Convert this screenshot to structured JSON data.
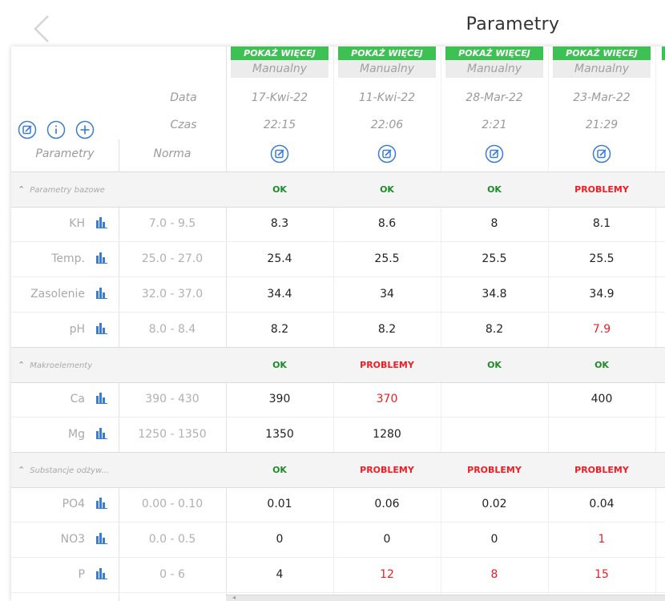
{
  "header": {
    "title": "Parametry",
    "back_icon": "chevron-left-icon"
  },
  "left_header": {
    "icons": [
      "edit-icon",
      "info-icon",
      "add-icon"
    ],
    "date_label": "Data",
    "time_label": "Czas",
    "param_label": "Parametry",
    "norm_label": "Norma"
  },
  "columns": [
    {
      "show_more": "POKAŻ WIĘCEJ",
      "source": "Manualny",
      "date": "17-Kwi-22",
      "time": "22:15"
    },
    {
      "show_more": "POKAŻ WIĘCEJ",
      "source": "Manualny",
      "date": "11-Kwi-22",
      "time": "22:06"
    },
    {
      "show_more": "POKAŻ WIĘCEJ",
      "source": "Manualny",
      "date": "28-Mar-22",
      "time": "2:21"
    },
    {
      "show_more": "POKAŻ WIĘCEJ",
      "source": "Manualny",
      "date": "23-Mar-22",
      "time": "21:29"
    }
  ],
  "sections": [
    {
      "label": "Parametry bazowe",
      "statuses": [
        {
          "text": "OK",
          "type": "ok"
        },
        {
          "text": "OK",
          "type": "ok"
        },
        {
          "text": "OK",
          "type": "ok"
        },
        {
          "text": "PROBLEMY",
          "type": "problem"
        }
      ],
      "rows": [
        {
          "name": "KH",
          "norm": "7.0 - 9.5",
          "values": [
            {
              "v": "8.3",
              "red": false
            },
            {
              "v": "8.6",
              "red": false
            },
            {
              "v": "8",
              "red": false
            },
            {
              "v": "8.1",
              "red": false
            }
          ]
        },
        {
          "name": "Temp.",
          "norm": "25.0 - 27.0",
          "values": [
            {
              "v": "25.4",
              "red": false
            },
            {
              "v": "25.5",
              "red": false
            },
            {
              "v": "25.5",
              "red": false
            },
            {
              "v": "25.5",
              "red": false
            }
          ]
        },
        {
          "name": "Zasolenie",
          "norm": "32.0 - 37.0",
          "values": [
            {
              "v": "34.4",
              "red": false
            },
            {
              "v": "34",
              "red": false
            },
            {
              "v": "34.8",
              "red": false
            },
            {
              "v": "34.9",
              "red": false
            }
          ]
        },
        {
          "name": "pH",
          "norm": "8.0 - 8.4",
          "values": [
            {
              "v": "8.2",
              "red": false
            },
            {
              "v": "8.2",
              "red": false
            },
            {
              "v": "8.2",
              "red": false
            },
            {
              "v": "7.9",
              "red": true
            }
          ]
        }
      ]
    },
    {
      "label": "Makroelementy",
      "statuses": [
        {
          "text": "OK",
          "type": "ok"
        },
        {
          "text": "PROBLEMY",
          "type": "problem"
        },
        {
          "text": "OK",
          "type": "ok"
        },
        {
          "text": "OK",
          "type": "ok"
        }
      ],
      "rows": [
        {
          "name": "Ca",
          "norm": "390 - 430",
          "values": [
            {
              "v": "390",
              "red": false
            },
            {
              "v": "370",
              "red": true
            },
            {
              "v": "",
              "red": false
            },
            {
              "v": "400",
              "red": false
            }
          ]
        },
        {
          "name": "Mg",
          "norm": "1250 - 1350",
          "values": [
            {
              "v": "1350",
              "red": false
            },
            {
              "v": "1280",
              "red": false
            },
            {
              "v": "",
              "red": false
            },
            {
              "v": "",
              "red": false
            }
          ]
        }
      ]
    },
    {
      "label": "Substancje odżyw...",
      "statuses": [
        {
          "text": "OK",
          "type": "ok"
        },
        {
          "text": "PROBLEMY",
          "type": "problem"
        },
        {
          "text": "PROBLEMY",
          "type": "problem"
        },
        {
          "text": "PROBLEMY",
          "type": "problem"
        }
      ],
      "rows": [
        {
          "name": "PO4",
          "norm": "0.00 - 0.10",
          "values": [
            {
              "v": "0.01",
              "red": false
            },
            {
              "v": "0.06",
              "red": false
            },
            {
              "v": "0.02",
              "red": false
            },
            {
              "v": "0.04",
              "red": false
            }
          ]
        },
        {
          "name": "NO3",
          "norm": "0.0 - 0.5",
          "values": [
            {
              "v": "0",
              "red": false
            },
            {
              "v": "0",
              "red": false
            },
            {
              "v": "0",
              "red": false
            },
            {
              "v": "1",
              "red": true
            }
          ]
        },
        {
          "name": "P",
          "norm": "0 - 6",
          "values": [
            {
              "v": "4",
              "red": false
            },
            {
              "v": "12",
              "red": true
            },
            {
              "v": "8",
              "red": true
            },
            {
              "v": "15",
              "red": true
            }
          ]
        }
      ]
    }
  ],
  "colors": {
    "accent_green": "#3dc153",
    "ok": "#1e8c2a",
    "problem": "#ee1c24",
    "icon_blue": "#3a7bd5"
  },
  "row_icon": "bar-chart-icon"
}
